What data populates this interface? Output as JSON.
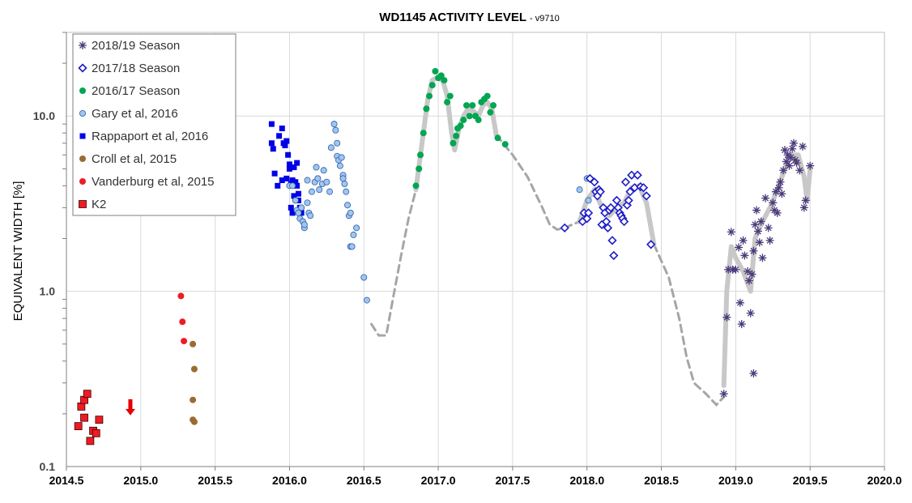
{
  "chart_data": {
    "type": "scatter",
    "title": "WD1145 ACTIVITY LEVEL",
    "subtitle": "- v9710",
    "xlabel": "",
    "ylabel": "EQUIVALENT WIDTH [%]",
    "xlim": [
      2014.5,
      2020.0
    ],
    "ylim": [
      0.1,
      30
    ],
    "yscale": "log",
    "x_ticks": [
      "2014.5",
      "2015.0",
      "2015.5",
      "2016.0",
      "2016.5",
      "2017.0",
      "2017.5",
      "2018.0",
      "2018.5",
      "2019.0",
      "2019.5",
      "2020.0"
    ],
    "y_ticks": [
      "0.1",
      "1.0",
      "10.0"
    ],
    "grid": true,
    "legend_position": "top-left",
    "series": [
      {
        "name": "2018/19 Season",
        "marker": "asterisk",
        "color": "#4b3a7a",
        "points": [
          [
            2018.92,
            0.26
          ],
          [
            2018.94,
            0.71
          ],
          [
            2018.95,
            1.33
          ],
          [
            2018.97,
            2.18
          ],
          [
            2018.98,
            1.33
          ],
          [
            2019.0,
            1.33
          ],
          [
            2019.02,
            1.78
          ],
          [
            2019.03,
            0.86
          ],
          [
            2019.04,
            0.65
          ],
          [
            2019.05,
            1.95
          ],
          [
            2019.06,
            1.6
          ],
          [
            2019.08,
            1.3
          ],
          [
            2019.09,
            1.15
          ],
          [
            2019.1,
            0.75
          ],
          [
            2019.11,
            1.25
          ],
          [
            2019.12,
            0.34
          ],
          [
            2019.12,
            1.7
          ],
          [
            2019.13,
            2.4
          ],
          [
            2019.14,
            2.9
          ],
          [
            2019.15,
            2.2
          ],
          [
            2019.16,
            1.9
          ],
          [
            2019.17,
            2.5
          ],
          [
            2019.18,
            1.55
          ],
          [
            2019.2,
            3.4
          ],
          [
            2019.22,
            2.3
          ],
          [
            2019.23,
            1.95
          ],
          [
            2019.25,
            3.2
          ],
          [
            2019.26,
            2.9
          ],
          [
            2019.27,
            3.7
          ],
          [
            2019.28,
            2.8
          ],
          [
            2019.29,
            3.9
          ],
          [
            2019.3,
            4.2
          ],
          [
            2019.31,
            3.6
          ],
          [
            2019.32,
            4.9
          ],
          [
            2019.33,
            6.4
          ],
          [
            2019.34,
            5.5
          ],
          [
            2019.35,
            6.0
          ],
          [
            2019.36,
            5.2
          ],
          [
            2019.37,
            5.8
          ],
          [
            2019.38,
            6.5
          ],
          [
            2019.39,
            7.0
          ],
          [
            2019.4,
            5.6
          ],
          [
            2019.41,
            5.4
          ],
          [
            2019.43,
            4.9
          ],
          [
            2019.45,
            6.7
          ],
          [
            2019.46,
            3.0
          ],
          [
            2019.47,
            3.3
          ],
          [
            2019.5,
            5.2
          ]
        ]
      },
      {
        "name": "2017/18 Season",
        "marker": "open-diamond",
        "color": "#1c1cc8",
        "points": [
          [
            2017.85,
            2.3
          ],
          [
            2017.97,
            2.5
          ],
          [
            2017.98,
            2.8
          ],
          [
            2018.0,
            2.6
          ],
          [
            2018.01,
            2.8
          ],
          [
            2018.02,
            4.4
          ],
          [
            2018.05,
            4.2
          ],
          [
            2018.06,
            3.7
          ],
          [
            2018.07,
            3.5
          ],
          [
            2018.08,
            3.8
          ],
          [
            2018.09,
            3.7
          ],
          [
            2018.1,
            2.4
          ],
          [
            2018.11,
            3.0
          ],
          [
            2018.12,
            2.8
          ],
          [
            2018.13,
            2.5
          ],
          [
            2018.14,
            2.3
          ],
          [
            2018.15,
            2.9
          ],
          [
            2018.16,
            3.0
          ],
          [
            2018.17,
            1.95
          ],
          [
            2018.18,
            1.6
          ],
          [
            2018.2,
            3.3
          ],
          [
            2018.21,
            3.0
          ],
          [
            2018.22,
            2.8
          ],
          [
            2018.23,
            2.7
          ],
          [
            2018.24,
            2.6
          ],
          [
            2018.25,
            2.5
          ],
          [
            2018.26,
            4.2
          ],
          [
            2018.27,
            3.1
          ],
          [
            2018.28,
            3.3
          ],
          [
            2018.29,
            3.7
          ],
          [
            2018.3,
            4.6
          ],
          [
            2018.32,
            3.9
          ],
          [
            2018.34,
            4.6
          ],
          [
            2018.36,
            3.95
          ],
          [
            2018.38,
            3.9
          ],
          [
            2018.4,
            3.5
          ],
          [
            2018.43,
            1.85
          ]
        ]
      },
      {
        "name": "2016/17 Season",
        "marker": "filled-circle",
        "color": "#00a651",
        "points": [
          [
            2016.85,
            4.0
          ],
          [
            2016.87,
            5.0
          ],
          [
            2016.88,
            6.0
          ],
          [
            2016.9,
            8.0
          ],
          [
            2016.92,
            11.0
          ],
          [
            2016.94,
            13.0
          ],
          [
            2016.96,
            15.0
          ],
          [
            2016.98,
            18.0
          ],
          [
            2017.0,
            16.5
          ],
          [
            2017.02,
            17.0
          ],
          [
            2017.04,
            16.0
          ],
          [
            2017.06,
            12.0
          ],
          [
            2017.08,
            13.0
          ],
          [
            2017.1,
            7.0
          ],
          [
            2017.12,
            7.7
          ],
          [
            2017.13,
            8.5
          ],
          [
            2017.15,
            8.8
          ],
          [
            2017.17,
            9.5
          ],
          [
            2017.19,
            11.5
          ],
          [
            2017.21,
            10.0
          ],
          [
            2017.23,
            11.5
          ],
          [
            2017.25,
            10.0
          ],
          [
            2017.27,
            9.5
          ],
          [
            2017.29,
            12.0
          ],
          [
            2017.31,
            12.5
          ],
          [
            2017.33,
            13.0
          ],
          [
            2017.35,
            10.5
          ],
          [
            2017.37,
            11.5
          ],
          [
            2017.4,
            7.5
          ],
          [
            2017.45,
            6.9
          ]
        ]
      },
      {
        "name": "Gary et al, 2016",
        "marker": "light-circle",
        "color": "#9fc5f0",
        "points": [
          [
            2016.0,
            4.0
          ],
          [
            2016.02,
            4.0
          ],
          [
            2016.04,
            3.3
          ],
          [
            2016.05,
            2.9
          ],
          [
            2016.06,
            2.8
          ],
          [
            2016.07,
            2.6
          ],
          [
            2016.08,
            3.0
          ],
          [
            2016.09,
            2.5
          ],
          [
            2016.1,
            2.3
          ],
          [
            2016.1,
            2.4
          ],
          [
            2016.12,
            4.3
          ],
          [
            2016.12,
            3.2
          ],
          [
            2016.13,
            2.8
          ],
          [
            2016.14,
            2.7
          ],
          [
            2016.15,
            3.7
          ],
          [
            2016.17,
            4.2
          ],
          [
            2016.18,
            5.1
          ],
          [
            2016.19,
            4.4
          ],
          [
            2016.2,
            3.8
          ],
          [
            2016.22,
            4.1
          ],
          [
            2016.23,
            4.9
          ],
          [
            2016.25,
            4.2
          ],
          [
            2016.27,
            3.7
          ],
          [
            2016.28,
            6.6
          ],
          [
            2016.3,
            9.0
          ],
          [
            2016.31,
            8.3
          ],
          [
            2016.32,
            7.0
          ],
          [
            2016.32,
            5.9
          ],
          [
            2016.33,
            5.6
          ],
          [
            2016.34,
            5.2
          ],
          [
            2016.35,
            5.8
          ],
          [
            2016.36,
            4.6
          ],
          [
            2016.36,
            4.4
          ],
          [
            2016.37,
            4.1
          ],
          [
            2016.38,
            3.7
          ],
          [
            2016.39,
            3.1
          ],
          [
            2016.4,
            2.7
          ],
          [
            2016.41,
            2.8
          ],
          [
            2016.41,
            1.8
          ],
          [
            2016.42,
            1.8
          ],
          [
            2016.43,
            2.1
          ],
          [
            2016.45,
            2.3
          ],
          [
            2016.5,
            1.2
          ],
          [
            2016.52,
            0.89
          ],
          [
            2018.0,
            4.4
          ],
          [
            2018.01,
            3.3
          ],
          [
            2017.95,
            3.8
          ]
        ]
      },
      {
        "name": "Rappaport et al, 2016",
        "marker": "filled-square",
        "color": "#0000e6",
        "points": [
          [
            2015.88,
            9.0
          ],
          [
            2015.88,
            7.0
          ],
          [
            2015.89,
            6.5
          ],
          [
            2015.9,
            4.7
          ],
          [
            2015.92,
            4.0
          ],
          [
            2015.93,
            7.7
          ],
          [
            2015.95,
            8.5
          ],
          [
            2015.96,
            7.0
          ],
          [
            2015.97,
            6.8
          ],
          [
            2015.98,
            7.2
          ],
          [
            2015.98,
            4.4
          ],
          [
            2015.99,
            6.0
          ],
          [
            2016.0,
            5.3
          ],
          [
            2016.0,
            5.0
          ],
          [
            2016.01,
            4.1
          ],
          [
            2016.02,
            4.3
          ],
          [
            2016.03,
            5.1
          ],
          [
            2016.04,
            4.2
          ],
          [
            2016.05,
            5.4
          ],
          [
            2016.05,
            4.0
          ],
          [
            2016.06,
            3.3
          ],
          [
            2016.06,
            3.6
          ],
          [
            2016.07,
            3.0
          ],
          [
            2016.08,
            2.8
          ],
          [
            2016.02,
            2.8
          ],
          [
            2016.03,
            3.5
          ],
          [
            2015.95,
            4.3
          ],
          [
            2016.01,
            3.0
          ]
        ]
      },
      {
        "name": "Croll et al, 2015",
        "marker": "filled-circle",
        "color": "#9c6b30",
        "points": [
          [
            2015.35,
            0.5
          ],
          [
            2015.36,
            0.36
          ],
          [
            2015.35,
            0.24
          ],
          [
            2015.35,
            0.185
          ],
          [
            2015.36,
            0.18
          ]
        ]
      },
      {
        "name": "Vanderburg et al, 2015",
        "marker": "filled-circle",
        "color": "#ed1c24",
        "points": [
          [
            2015.27,
            0.94
          ],
          [
            2015.28,
            0.67
          ],
          [
            2015.29,
            0.52
          ]
        ]
      },
      {
        "name": "K2",
        "marker": "filled-square",
        "color": "#ed1c24",
        "points": [
          [
            2014.58,
            0.17
          ],
          [
            2014.6,
            0.22
          ],
          [
            2014.62,
            0.24
          ],
          [
            2014.64,
            0.26
          ],
          [
            2014.62,
            0.19
          ],
          [
            2014.66,
            0.14
          ],
          [
            2014.68,
            0.16
          ],
          [
            2014.7,
            0.155
          ],
          [
            2014.72,
            0.185
          ]
        ]
      }
    ],
    "upper_limit_arrow": {
      "x": 2014.93,
      "y": 0.2,
      "color": "#e60000"
    },
    "trend_solid": {
      "color": "#c8c8c8",
      "segments": [
        [
          [
            2016.85,
            3.8
          ],
          [
            2016.9,
            8.0
          ],
          [
            2016.93,
            12.5
          ],
          [
            2016.96,
            16.0
          ],
          [
            2016.99,
            16.5
          ],
          [
            2017.03,
            16.0
          ],
          [
            2017.06,
            13.0
          ],
          [
            2017.09,
            8.0
          ],
          [
            2017.11,
            6.4
          ],
          [
            2017.14,
            8.5
          ],
          [
            2017.17,
            10.0
          ],
          [
            2017.2,
            11.0
          ],
          [
            2017.24,
            10.6
          ],
          [
            2017.27,
            10.0
          ],
          [
            2017.3,
            11.5
          ],
          [
            2017.33,
            12.0
          ],
          [
            2017.36,
            11.0
          ],
          [
            2017.39,
            7.8
          ]
        ],
        [
          [
            2017.95,
            2.5
          ],
          [
            2018.0,
            3.3
          ],
          [
            2018.05,
            3.8
          ],
          [
            2018.1,
            3.0
          ],
          [
            2018.15,
            2.7
          ],
          [
            2018.2,
            3.0
          ],
          [
            2018.25,
            3.2
          ],
          [
            2018.3,
            3.9
          ],
          [
            2018.35,
            4.0
          ],
          [
            2018.4,
            3.2
          ],
          [
            2018.45,
            1.85
          ]
        ],
        [
          [
            2018.92,
            0.29
          ],
          [
            2018.94,
            1.0
          ],
          [
            2018.97,
            1.8
          ],
          [
            2019.0,
            1.55
          ],
          [
            2019.05,
            1.3
          ],
          [
            2019.1,
            1.0
          ],
          [
            2019.13,
            2.0
          ],
          [
            2019.18,
            2.5
          ],
          [
            2019.23,
            3.0
          ],
          [
            2019.28,
            3.8
          ],
          [
            2019.33,
            5.0
          ],
          [
            2019.37,
            6.0
          ],
          [
            2019.42,
            6.0
          ],
          [
            2019.46,
            4.5
          ],
          [
            2019.48,
            3.3
          ],
          [
            2019.5,
            5.0
          ]
        ]
      ]
    },
    "trend_dashed": {
      "color": "#a6a6a6",
      "segments": [
        [
          [
            2016.55,
            0.65
          ],
          [
            2016.6,
            0.56
          ],
          [
            2016.65,
            0.56
          ],
          [
            2016.7,
            0.95
          ],
          [
            2016.75,
            1.6
          ],
          [
            2016.8,
            2.6
          ],
          [
            2016.85,
            3.8
          ]
        ],
        [
          [
            2017.39,
            7.8
          ],
          [
            2017.5,
            6.0
          ],
          [
            2017.6,
            4.5
          ],
          [
            2017.7,
            3.0
          ],
          [
            2017.75,
            2.4
          ],
          [
            2017.8,
            2.25
          ],
          [
            2017.85,
            2.3
          ],
          [
            2017.95,
            2.5
          ]
        ],
        [
          [
            2018.45,
            1.85
          ],
          [
            2018.55,
            1.2
          ],
          [
            2018.62,
            0.7
          ],
          [
            2018.67,
            0.42
          ],
          [
            2018.72,
            0.3
          ],
          [
            2018.8,
            0.26
          ],
          [
            2018.87,
            0.225
          ],
          [
            2018.92,
            0.25
          ]
        ]
      ]
    }
  }
}
